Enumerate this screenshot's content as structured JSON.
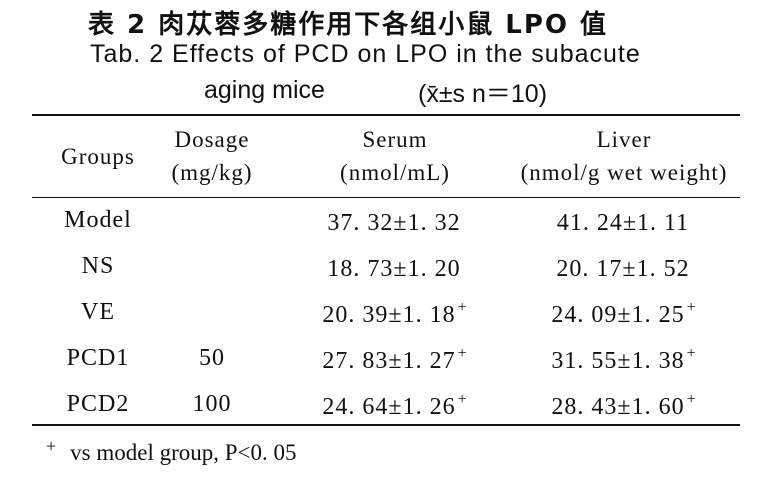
{
  "title_cn": "表 2  肉苁蓉多糖作用下各组小鼠 LPO 值",
  "title_en_line1": "Tab. 2   Effects of PCD on LPO  in the subacute",
  "title_en_line2_left": "aging mice",
  "title_en_line2_right": "(x̄±s   n＝10)",
  "table": {
    "headers": {
      "group": "Groups",
      "dosage": "Dosage",
      "dosage_unit": "(mg/kg)",
      "serum": "Serum",
      "serum_unit": "(nmol/mL)",
      "liver": "Liver",
      "liver_unit": "(nmol/g wet weight)"
    },
    "rows": [
      {
        "group": "Model",
        "dosage": "",
        "serum": "37. 32±1. 32",
        "serum_mark": "",
        "liver": "41. 24±1. 11",
        "liver_mark": ""
      },
      {
        "group": "NS",
        "dosage": "",
        "serum": "18. 73±1. 20",
        "serum_mark": "",
        "liver": "20. 17±1. 52",
        "liver_mark": ""
      },
      {
        "group": "VE",
        "dosage": "",
        "serum": "20. 39±1. 18",
        "serum_mark": "+",
        "liver": "24. 09±1. 25",
        "liver_mark": "+"
      },
      {
        "group": "PCD1",
        "dosage": "50",
        "serum": "27. 83±1. 27",
        "serum_mark": "+",
        "liver": "31. 55±1. 38",
        "liver_mark": "+"
      },
      {
        "group": "PCD2",
        "dosage": "100",
        "serum": "24. 64±1. 26",
        "serum_mark": "+",
        "liver": "28. 43±1. 60",
        "liver_mark": "+"
      }
    ]
  },
  "footnote": {
    "mark": "+",
    "text": "vs model group, P<0. 05"
  }
}
